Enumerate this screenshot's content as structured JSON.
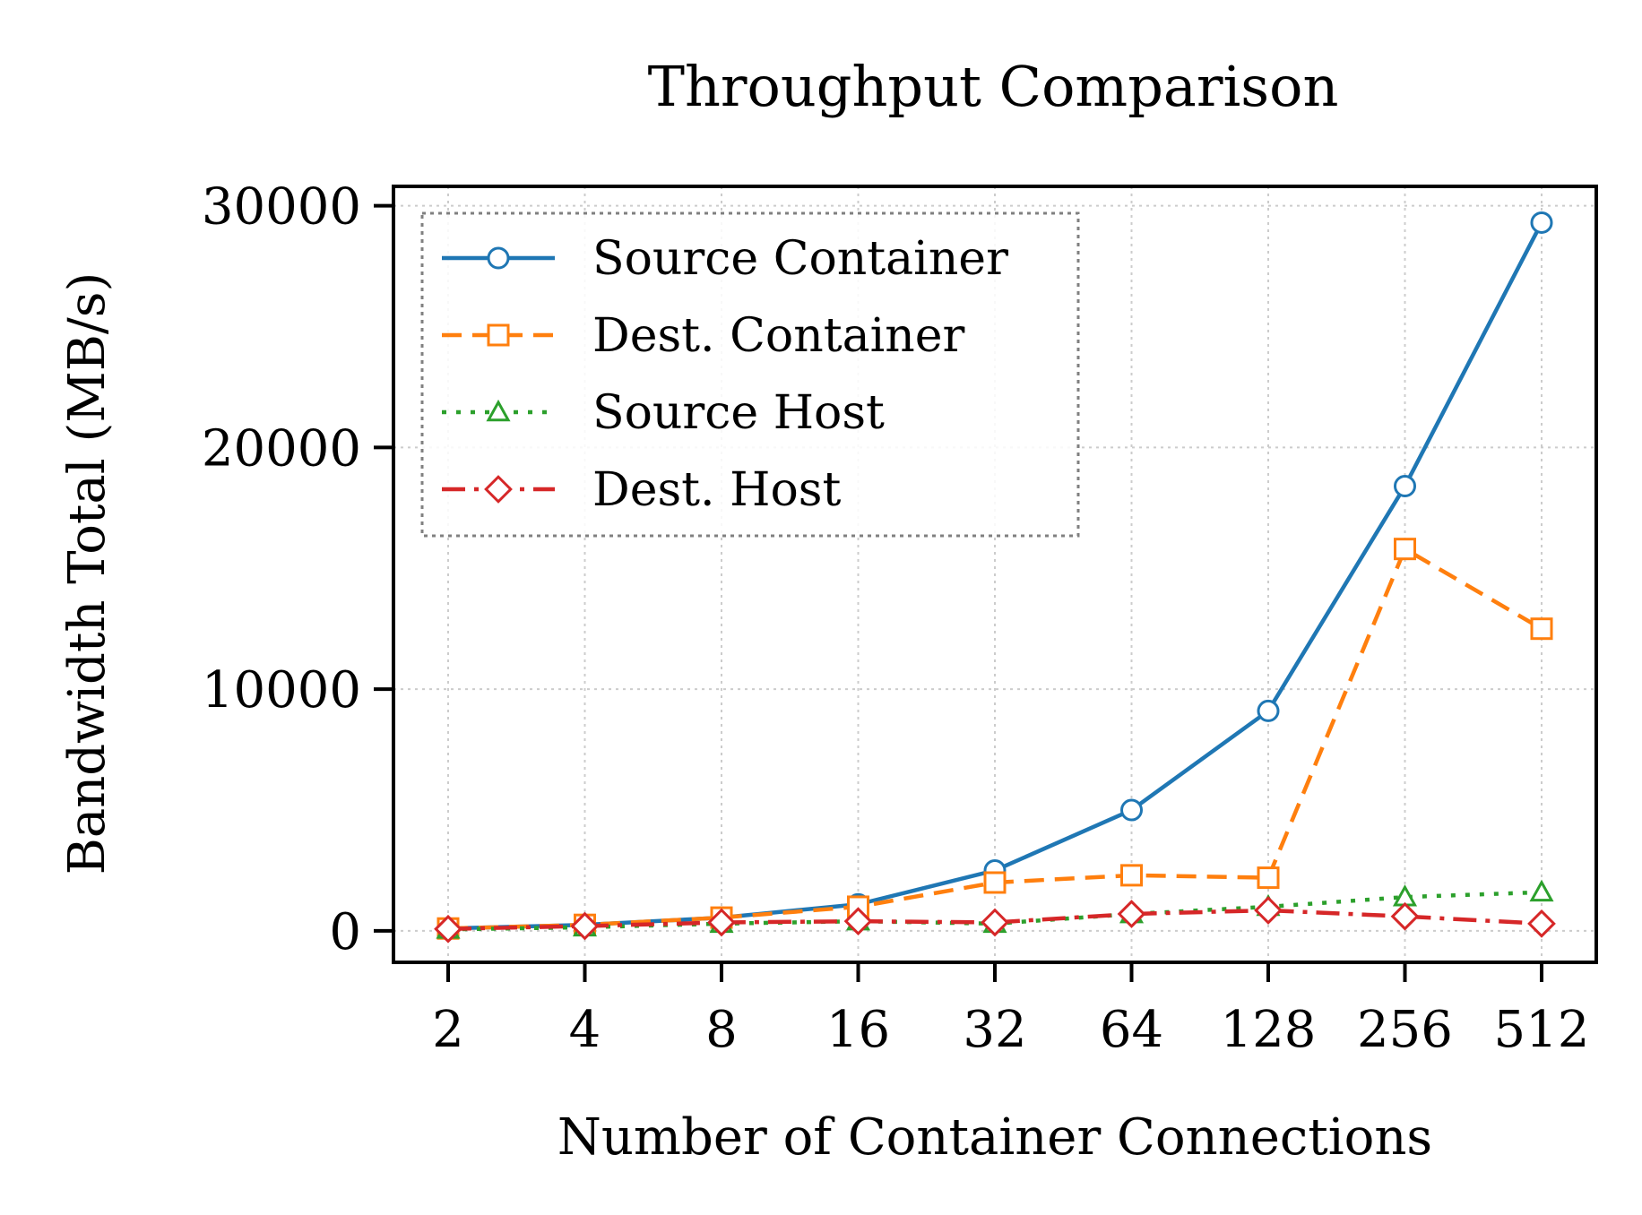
{
  "chart_data": {
    "type": "line",
    "title": "Throughput Comparison",
    "xlabel": "Number of Container Connections",
    "ylabel": "Bandwidth Total (MB/s)",
    "x": [
      2,
      4,
      8,
      16,
      32,
      64,
      128,
      256,
      512
    ],
    "x_tick_labels": [
      "2",
      "4",
      "8",
      "16",
      "32",
      "64",
      "128",
      "256",
      "512"
    ],
    "x_scale": "log2",
    "y_ticks": [
      0,
      10000,
      20000,
      30000
    ],
    "y_tick_labels": [
      "0",
      "10000",
      "20000",
      "30000"
    ],
    "ylim": [
      -1300,
      30800
    ],
    "grid": true,
    "legend_position": "upper-left",
    "series": [
      {
        "name": "Source Container",
        "color": "#1f77b4",
        "marker": "circle",
        "line_style": "solid",
        "values": [
          100,
          250,
          550,
          1100,
          2500,
          5000,
          9100,
          18400,
          29300
        ]
      },
      {
        "name": "Dest. Container",
        "color": "#ff7f0e",
        "marker": "square",
        "line_style": "dashed",
        "values": [
          100,
          250,
          550,
          1000,
          2000,
          2300,
          2200,
          15800,
          12500
        ]
      },
      {
        "name": "Source Host",
        "color": "#2ca02c",
        "marker": "triangle",
        "line_style": "dotted",
        "values": [
          60,
          150,
          300,
          400,
          300,
          700,
          1000,
          1400,
          1600
        ]
      },
      {
        "name": "Dest. Host",
        "color": "#d62728",
        "marker": "diamond",
        "line_style": "dashdot",
        "values": [
          80,
          200,
          350,
          400,
          350,
          700,
          850,
          600,
          300
        ]
      }
    ]
  }
}
